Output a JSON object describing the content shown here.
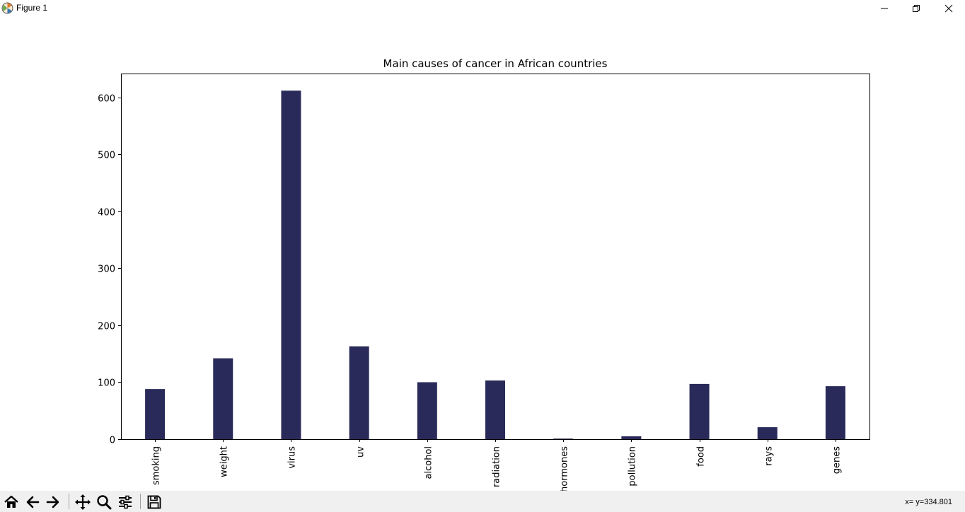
{
  "window": {
    "title": "Figure 1",
    "icons": [
      "matplotlib-logo-icon",
      "minimize-icon",
      "maximize-icon",
      "close-icon"
    ]
  },
  "toolbar": {
    "buttons": [
      "home-icon",
      "back-icon",
      "forward-icon",
      "pan-icon",
      "zoom-icon",
      "configure-subplots-icon",
      "save-icon"
    ],
    "coords": "x= y=334.801"
  },
  "colors": {
    "bar": "#2a2a5a",
    "toolbar_bg": "#f0f0f0"
  },
  "chart_data": {
    "type": "bar",
    "title": "Main causes of cancer in African countries",
    "xlabel": "",
    "ylabel": "",
    "categories": [
      "smoking",
      "weight",
      "virus",
      "uv",
      "alcohol",
      "radiation",
      "hormones",
      "pollution",
      "food",
      "rays",
      "genes"
    ],
    "values": [
      88,
      142,
      612,
      163,
      100,
      103,
      1,
      5,
      97,
      21,
      93
    ],
    "ylim": [
      0,
      642
    ],
    "yticks": [
      0,
      100,
      200,
      300,
      400,
      500,
      600
    ],
    "ytick_labels": [
      "0",
      "100",
      "200",
      "300",
      "400",
      "500",
      "600"
    ],
    "xtick_rotation": "vertical",
    "grid": false,
    "legend": "none"
  }
}
